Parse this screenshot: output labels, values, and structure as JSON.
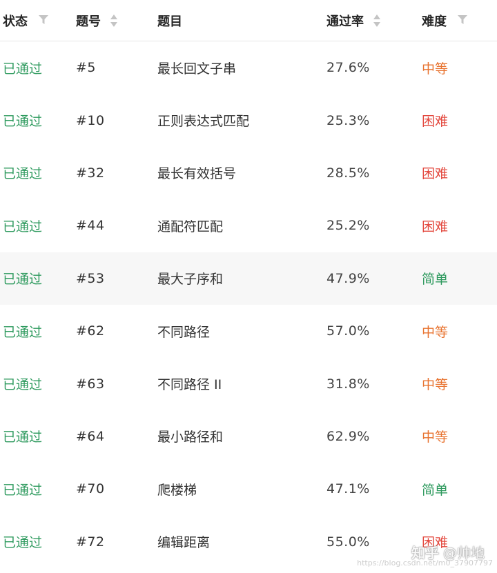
{
  "header": {
    "status": "状态",
    "id": "题号",
    "title": "题目",
    "rate": "通过率",
    "difficulty": "难度"
  },
  "rows": [
    {
      "status": "已通过",
      "id": "#5",
      "title": "最长回文子串",
      "rate": "27.6%",
      "difficulty": "中等",
      "level": "medium"
    },
    {
      "status": "已通过",
      "id": "#10",
      "title": "正则表达式匹配",
      "rate": "25.3%",
      "difficulty": "困难",
      "level": "hard"
    },
    {
      "status": "已通过",
      "id": "#32",
      "title": "最长有效括号",
      "rate": "28.5%",
      "difficulty": "困难",
      "level": "hard"
    },
    {
      "status": "已通过",
      "id": "#44",
      "title": "通配符匹配",
      "rate": "25.2%",
      "difficulty": "困难",
      "level": "hard"
    },
    {
      "status": "已通过",
      "id": "#53",
      "title": "最大子序和",
      "rate": "47.9%",
      "difficulty": "简单",
      "level": "easy"
    },
    {
      "status": "已通过",
      "id": "#62",
      "title": "不同路径",
      "rate": "57.0%",
      "difficulty": "中等",
      "level": "medium"
    },
    {
      "status": "已通过",
      "id": "#63",
      "title": "不同路径 II",
      "rate": "31.8%",
      "difficulty": "中等",
      "level": "medium"
    },
    {
      "status": "已通过",
      "id": "#64",
      "title": "最小路径和",
      "rate": "62.9%",
      "difficulty": "中等",
      "level": "medium"
    },
    {
      "status": "已通过",
      "id": "#70",
      "title": "爬楼梯",
      "rate": "47.1%",
      "difficulty": "简单",
      "level": "easy"
    },
    {
      "status": "已通过",
      "id": "#72",
      "title": "编辑距离",
      "rate": "55.0%",
      "difficulty": "困难",
      "level": "hard"
    }
  ],
  "watermark": {
    "logo": "知乎",
    "author": "@帅地",
    "url": "https://blog.csdn.net/m0_37907797"
  },
  "colors": {
    "passed": "#2e9a5e",
    "medium": "#e87431",
    "hard": "#e3483e",
    "easy": "#2e9a5e"
  },
  "icons": {
    "status_header": "filter-icon",
    "id_header": "sort-icon",
    "rate_header": "sort-icon",
    "difficulty_header": "filter-icon"
  }
}
